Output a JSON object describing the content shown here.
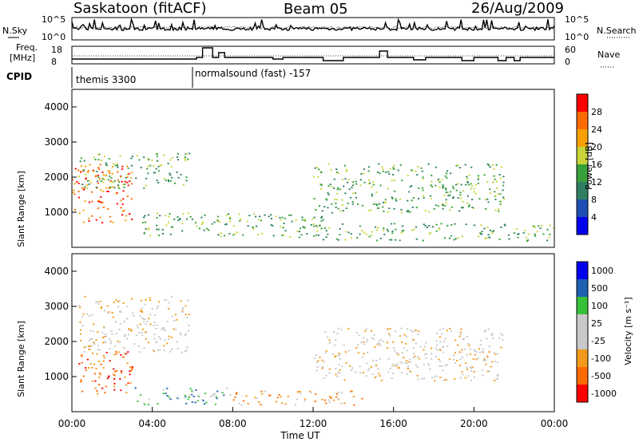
{
  "header": {
    "station": "Saskatoon (fitACF)",
    "beam": "Beam 05",
    "date": "26/Aug/2009"
  },
  "panels": {
    "nsky": {
      "label": "N.Sky",
      "ticks_left": [
        "10^5",
        "10^0"
      ],
      "ticks_right": [
        "10^5",
        "10^0"
      ],
      "right_label": "N.Search"
    },
    "freq": {
      "label_line1": "Freq.",
      "label_line2": "[MHz]",
      "ticks_left": [
        "18",
        "8"
      ],
      "ticks_right": [
        "60",
        "0"
      ],
      "right_label": "Nave"
    },
    "cpid": {
      "label": "CPID",
      "segments": [
        {
          "start_hour": 0,
          "end_hour": 6,
          "text": "themis 3300"
        },
        {
          "start_hour": 6,
          "end_hour": 24,
          "text": "normalsound (fast) -157"
        }
      ]
    }
  },
  "colors": {
    "power_scale": [
      "#0000ee",
      "#1f4fb4",
      "#2e7f61",
      "#37a03a",
      "#c8d43a",
      "#f8a000",
      "#ff6a00",
      "#ff0000"
    ],
    "velocity_scale": [
      "#ff0000",
      "#ff6a00",
      "#f39a1a",
      "#c8c8c8",
      "#c8c8c8",
      "#36c03a",
      "#1f5fb0",
      "#0000ee"
    ]
  },
  "chart_data": [
    {
      "type": "heatmap",
      "name": "power",
      "ylabel": "Slant Range [km]",
      "xlabel": "",
      "xlim": [
        "00:00",
        "24:00"
      ],
      "ylim": [
        0,
        4500
      ],
      "y_ticks": [
        "1000",
        "2000",
        "3000",
        "4000"
      ],
      "colorbar": {
        "label": "Power [dB]",
        "ticks": [
          "4",
          "8",
          "12",
          "16",
          "20",
          "24",
          "28"
        ]
      },
      "echo_regions": [
        {
          "t0": 0.0,
          "t1": 3.0,
          "r0": 700,
          "r1": 2400,
          "level": "high"
        },
        {
          "t0": 0.3,
          "t1": 5.8,
          "r0": 1700,
          "r1": 2700,
          "level": "medium"
        },
        {
          "t0": 3.5,
          "t1": 12.5,
          "r0": 300,
          "r1": 1000,
          "level": "medium"
        },
        {
          "t0": 12.0,
          "t1": 21.5,
          "r0": 1000,
          "r1": 2400,
          "level": "medium"
        },
        {
          "t0": 12.0,
          "t1": 24.0,
          "r0": 200,
          "r1": 700,
          "level": "medium"
        }
      ]
    },
    {
      "type": "heatmap",
      "name": "velocity",
      "ylabel": "Slant Range [km]",
      "xlabel": "Time UT",
      "xlim": [
        "00:00",
        "24:00"
      ],
      "ylim": [
        0,
        4500
      ],
      "y_ticks": [
        "1000",
        "2000",
        "3000",
        "4000"
      ],
      "x_ticks": [
        "00:00",
        "04:00",
        "08:00",
        "12:00",
        "16:00",
        "20:00",
        "00:00"
      ],
      "colorbar": {
        "label": "Velocity [m s⁻¹]",
        "ticks": [
          "1000",
          "500",
          "100",
          "25",
          "-25",
          "-100",
          "-500",
          "-1000"
        ]
      },
      "echo_regions": [
        {
          "t0": 0.3,
          "t1": 3.0,
          "r0": 500,
          "r1": 1800,
          "level": "-500"
        },
        {
          "t0": 0.3,
          "t1": 5.8,
          "r0": 1700,
          "r1": 3300,
          "level": "-25"
        },
        {
          "t0": 3.0,
          "t1": 7.8,
          "r0": 200,
          "r1": 700,
          "level": "100"
        },
        {
          "t0": 7.8,
          "t1": 14.5,
          "r0": 200,
          "r1": 600,
          "level": "-100"
        },
        {
          "t0": 12.0,
          "t1": 21.5,
          "r0": 900,
          "r1": 2400,
          "level": "-25"
        }
      ]
    }
  ]
}
